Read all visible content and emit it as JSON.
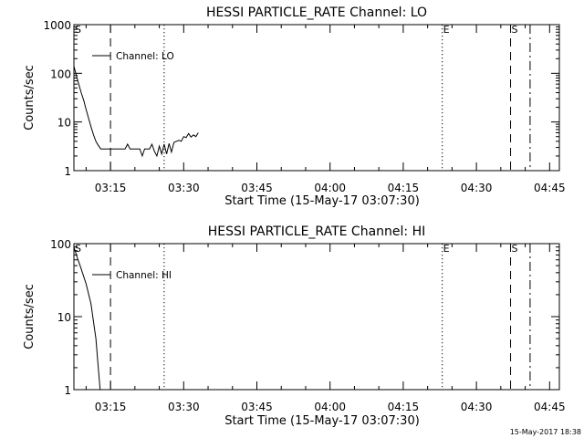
{
  "chart_data": [
    {
      "type": "line",
      "title": "HESSI PARTICLE_RATE Channel: LO",
      "xlabel": "Start Time (15-May-17 03:07:30)",
      "ylabel": "Counts/sec",
      "yscale": "log",
      "ylim": [
        1,
        1000
      ],
      "xlim": [
        "03:07:30",
        "04:47:00"
      ],
      "x_ticks": [
        "03:15",
        "03:30",
        "03:45",
        "04:00",
        "04:15",
        "04:30",
        "04:45"
      ],
      "y_ticks": [
        "1",
        "10",
        "100",
        "1000"
      ],
      "legend": "top-left",
      "series": [
        {
          "name": "Channel: LO",
          "x": [
            "03:07:30",
            "03:08:00",
            "03:08:30",
            "03:09:00",
            "03:09:30",
            "03:10:00",
            "03:10:30",
            "03:11:00",
            "03:11:30",
            "03:12:00",
            "03:12:30",
            "03:13:00",
            "03:14:00",
            "03:15:00",
            "03:16:00",
            "03:17:00",
            "03:18:00",
            "03:18:30",
            "03:19:00",
            "03:20:00",
            "03:21:00",
            "03:21:30",
            "03:22:00",
            "03:22:30",
            "03:23:00",
            "03:23:30",
            "03:24:00",
            "03:24:30",
            "03:25:00",
            "03:25:30",
            "03:26:00",
            "03:26:30",
            "03:27:00",
            "03:27:30",
            "03:28:00",
            "03:28:30",
            "03:29:00",
            "03:29:30",
            "03:30:00",
            "03:30:30",
            "03:31:00",
            "03:31:30",
            "03:32:00",
            "03:32:30",
            "03:33:00"
          ],
          "y": [
            140,
            90,
            60,
            40,
            28,
            18,
            12,
            8,
            5.5,
            4,
            3.3,
            2.8,
            2.8,
            2.8,
            2.8,
            2.8,
            2.8,
            3.5,
            2.8,
            2.8,
            2.8,
            2.0,
            2.8,
            2.8,
            2.8,
            3.5,
            2.5,
            2.0,
            3.2,
            2.2,
            3.5,
            2.2,
            3.6,
            2.4,
            3.8,
            4.0,
            4.2,
            4.0,
            5.0,
            4.8,
            5.8,
            4.9,
            5.4,
            5.0,
            6.0
          ]
        }
      ],
      "markers": [
        {
          "label": "S",
          "time": "03:07:30",
          "style": "dash-dot"
        },
        {
          "label": "",
          "time": "03:15:00",
          "style": "dashed"
        },
        {
          "label": "",
          "time": "03:26:00",
          "style": "dotted"
        },
        {
          "label": "E",
          "time": "04:23:00",
          "style": "dotted"
        },
        {
          "label": "S",
          "time": "04:37:00",
          "style": "dashed"
        },
        {
          "label": "",
          "time": "04:41:00",
          "style": "dash-dot"
        }
      ]
    },
    {
      "type": "line",
      "title": "HESSI PARTICLE_RATE Channel: HI",
      "xlabel": "Start Time (15-May-17 03:07:30)",
      "ylabel": "Counts/sec",
      "yscale": "log",
      "ylim": [
        1,
        100
      ],
      "xlim": [
        "03:07:30",
        "04:47:00"
      ],
      "x_ticks": [
        "03:15",
        "03:30",
        "03:45",
        "04:00",
        "04:15",
        "04:30",
        "04:45"
      ],
      "y_ticks": [
        "1",
        "10",
        "100"
      ],
      "legend": "top-left",
      "series": [
        {
          "name": "Channel: HI",
          "x": [
            "03:07:30",
            "03:08:00",
            "03:09:00",
            "03:10:00",
            "03:11:00",
            "03:12:00",
            "03:12:30",
            "03:13:00"
          ],
          "y": [
            90,
            70,
            45,
            28,
            15,
            5,
            2,
            0.8
          ]
        }
      ],
      "markers": [
        {
          "label": "S",
          "time": "03:07:30",
          "style": "dash-dot"
        },
        {
          "label": "",
          "time": "03:15:00",
          "style": "dashed"
        },
        {
          "label": "",
          "time": "03:26:00",
          "style": "dotted"
        },
        {
          "label": "E",
          "time": "04:23:00",
          "style": "dotted"
        },
        {
          "label": "S",
          "time": "04:37:00",
          "style": "dashed"
        },
        {
          "label": "",
          "time": "04:41:00",
          "style": "dash-dot"
        }
      ]
    }
  ],
  "footer": {
    "timestamp": "15-May-2017 18:38"
  },
  "colors": {
    "background": "#ffffff",
    "ink": "#000000"
  }
}
